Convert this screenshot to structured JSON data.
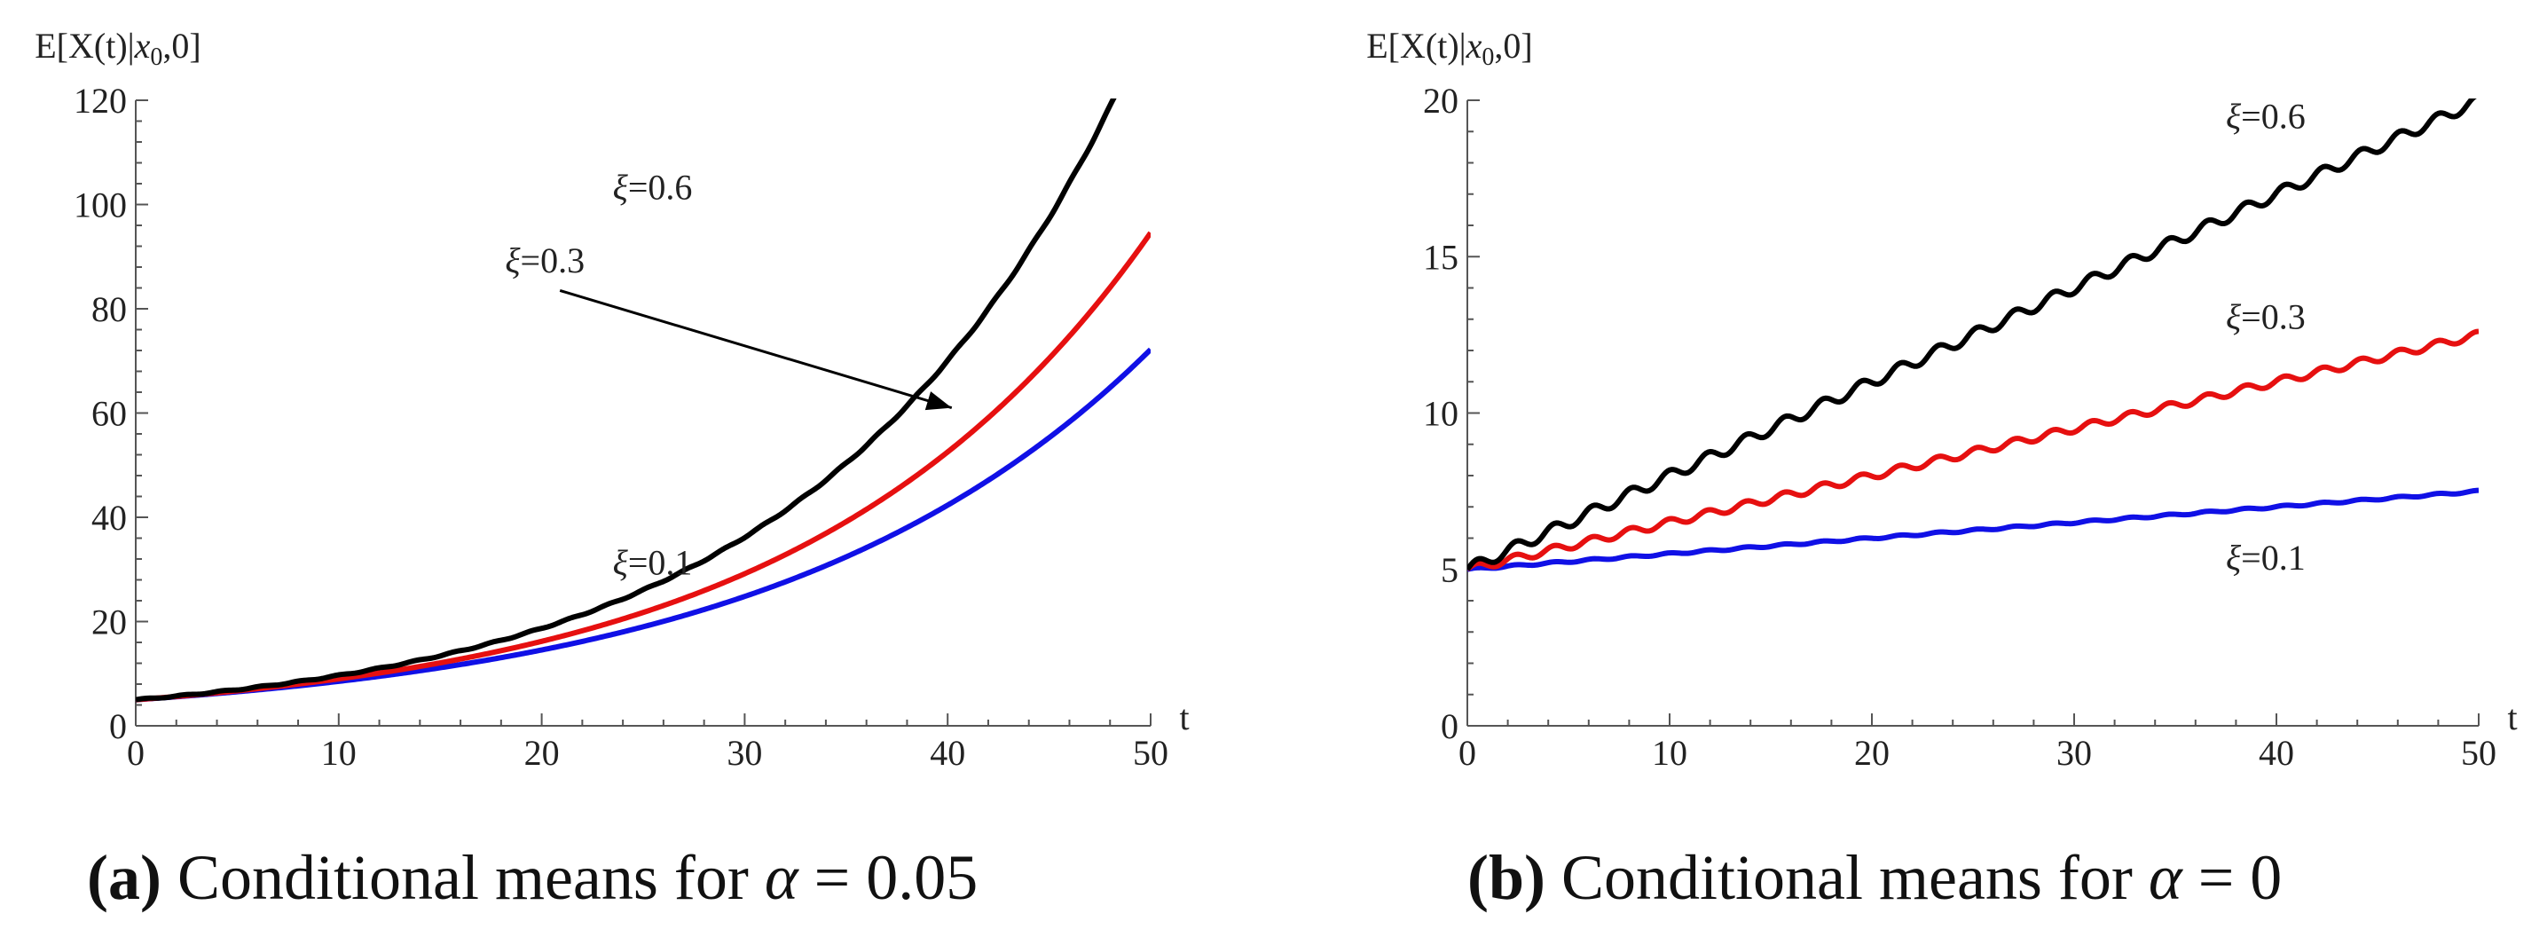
{
  "chart_data": [
    {
      "type": "line",
      "panel_label": "a",
      "caption": {
        "tag": "(a)",
        "text": "Conditional means for",
        "symbol": "α",
        "rhs": "= 0.05"
      },
      "ylabel": {
        "prefix": "E[X(t)|",
        "var": "x",
        "sub": "0",
        "suffix": ",0]"
      },
      "xlabel": "t",
      "xlim": [
        0,
        50
      ],
      "ylim": [
        0,
        120
      ],
      "xticks": [
        0,
        10,
        20,
        30,
        40,
        50
      ],
      "yticks": [
        0,
        20,
        40,
        60,
        80,
        100,
        120
      ],
      "series": [
        {
          "name": "ξ=0.1",
          "color": "#1010e6",
          "model": "exp",
          "x0": 5,
          "rate": 0.0534,
          "wiggle": 0
        },
        {
          "name": "ξ=0.3",
          "color": "#e61010",
          "model": "exp",
          "x0": 5,
          "rate": 0.0588,
          "wiggle": 0.0
        },
        {
          "name": "ξ=0.6",
          "color": "#000000",
          "model": "exp",
          "x0": 5,
          "rate": 0.066,
          "wiggle": 0.05
        }
      ],
      "annotations": [
        {
          "greek": "ξ",
          "text": "=0.6",
          "x": 23.5,
          "y": 101
        },
        {
          "greek": "ξ",
          "text": "=0.3",
          "x": 18.2,
          "y": 87
        },
        {
          "greek": "ξ",
          "text": "=0.1",
          "x": 23.5,
          "y": 29
        }
      ],
      "arrow": {
        "from": [
          20.9,
          83.5
        ],
        "to": [
          40.2,
          61
        ]
      }
    },
    {
      "type": "line",
      "panel_label": "b",
      "caption": {
        "tag": "(b)",
        "text": "Conditional means for",
        "symbol": "α",
        "rhs": "= 0"
      },
      "ylabel": {
        "prefix": "E[X(t)|",
        "var": "x",
        "sub": "0",
        "suffix": ",0]"
      },
      "xlabel": "t",
      "xlim": [
        0,
        50
      ],
      "ylim": [
        0,
        20
      ],
      "xticks": [
        0,
        10,
        20,
        30,
        40,
        50
      ],
      "yticks": [
        0,
        5,
        10,
        15,
        20
      ],
      "series": [
        {
          "name": "ξ=0.1",
          "color": "#1010e6",
          "model": "lin",
          "x0": 5,
          "slope": 0.05,
          "wiggle": 0.03
        },
        {
          "name": "ξ=0.3",
          "color": "#e61010",
          "model": "lin",
          "x0": 5,
          "slope": 0.15,
          "wiggle": 0.12
        },
        {
          "name": "ξ=0.6",
          "color": "#000000",
          "model": "lin",
          "x0": 5,
          "slope": 0.3,
          "wiggle": 0.18
        }
      ],
      "annotations": [
        {
          "greek": "ξ",
          "text": "=0.6",
          "x": 37.5,
          "y": 19.1
        },
        {
          "greek": "ξ",
          "text": "=0.3",
          "x": 37.5,
          "y": 12.7
        },
        {
          "greek": "ξ",
          "text": "=0.1",
          "x": 37.5,
          "y": 5.0
        }
      ]
    }
  ]
}
